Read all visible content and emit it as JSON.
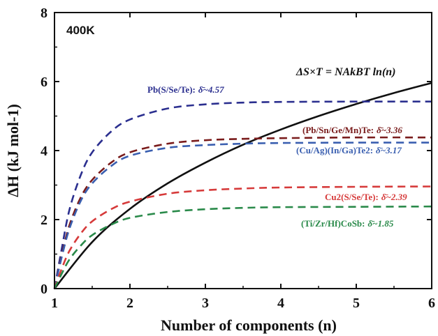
{
  "chart_data": {
    "type": "line",
    "xlabel": "Number of components (n)",
    "ylabel": "ΔH (kJ mol-1)",
    "xlim": [
      1,
      6
    ],
    "ylim": [
      0,
      8
    ],
    "x_ticks": [
      "1",
      "2",
      "3",
      "4",
      "5",
      "6"
    ],
    "y_ticks": [
      "0",
      "2",
      "4",
      "6",
      "8"
    ],
    "temperature_label": "400K",
    "equation_label": "ΔS×T = NAkBT ln(n)",
    "series": [
      {
        "name": "ΔS×T = NAkBT ln(n)",
        "style": "solid",
        "color": "#111111",
        "x": [
          1,
          1.5,
          2,
          2.5,
          3,
          3.5,
          4,
          4.5,
          5,
          5.5,
          6
        ],
        "y": [
          0,
          1.35,
          2.31,
          3.05,
          3.65,
          4.17,
          4.61,
          5.0,
          5.35,
          5.67,
          5.96
        ]
      },
      {
        "name": "Pb(S/Se/Te): δ̄~4.57",
        "style": "dashed",
        "color": "#2b2f8f",
        "x": [
          1,
          1.1,
          1.2,
          1.35,
          1.5,
          1.75,
          2,
          2.5,
          3,
          3.5,
          4,
          5,
          6
        ],
        "y": [
          0,
          1.2,
          2.3,
          3.3,
          3.95,
          4.55,
          4.9,
          5.22,
          5.34,
          5.39,
          5.41,
          5.42,
          5.42
        ]
      },
      {
        "name": "(Pb/Sn/Ge/Mn)Te: δ̄~3.36",
        "style": "dashed",
        "color": "#7a1c1c",
        "x": [
          1,
          1.1,
          1.2,
          1.35,
          1.5,
          1.75,
          2,
          2.5,
          3,
          3.5,
          4,
          5,
          6
        ],
        "y": [
          0,
          1.0,
          1.85,
          2.65,
          3.15,
          3.65,
          3.95,
          4.2,
          4.3,
          4.34,
          4.36,
          4.38,
          4.38
        ]
      },
      {
        "name": "(Cu/Ag)(In/Ga)Te2: δ̄~3.17",
        "style": "dashed",
        "color": "#3a5fb0",
        "x": [
          1,
          1.1,
          1.2,
          1.35,
          1.5,
          1.75,
          2,
          2.5,
          3,
          3.5,
          4,
          5,
          6
        ],
        "y": [
          0,
          0.95,
          1.75,
          2.55,
          3.05,
          3.55,
          3.85,
          4.08,
          4.16,
          4.2,
          4.22,
          4.23,
          4.23
        ]
      },
      {
        "name": "Cu2(S/Se/Te): δ̄~2.39",
        "style": "dashed",
        "color": "#d63a3a",
        "x": [
          1,
          1.1,
          1.2,
          1.35,
          1.5,
          1.75,
          2,
          2.5,
          3,
          3.5,
          4,
          5,
          6
        ],
        "y": [
          0,
          0.6,
          1.1,
          1.6,
          1.95,
          2.3,
          2.52,
          2.75,
          2.85,
          2.9,
          2.93,
          2.95,
          2.96
        ]
      },
      {
        "name": "(Ti/Zr/Hf)CoSb: δ̄~1.85",
        "style": "dashed",
        "color": "#2a8a4a",
        "x": [
          1,
          1.1,
          1.2,
          1.35,
          1.5,
          1.75,
          2,
          2.5,
          3,
          3.5,
          4,
          5,
          6
        ],
        "y": [
          0,
          0.45,
          0.85,
          1.25,
          1.55,
          1.85,
          2.05,
          2.22,
          2.3,
          2.34,
          2.36,
          2.37,
          2.38
        ]
      }
    ],
    "annotations": [
      {
        "label": "Pb(S/Se/Te):",
        "value": "δ̄~4.57",
        "color": "#2b2f8f"
      },
      {
        "label": "(Pb/Sn/Ge/Mn)Te:",
        "value": "δ̄~3.36",
        "color": "#7a1c1c"
      },
      {
        "label": "(Cu/Ag)(In/Ga)Te2:",
        "value": "δ̄~3.17",
        "color": "#3a5fb0"
      },
      {
        "label": "Cu2(S/Se/Te):",
        "value": "δ̄~2.39",
        "color": "#d63a3a"
      },
      {
        "label": "(Ti/Zr/Hf)CoSb:",
        "value": "δ̄~1.85",
        "color": "#2a8a4a"
      }
    ]
  }
}
